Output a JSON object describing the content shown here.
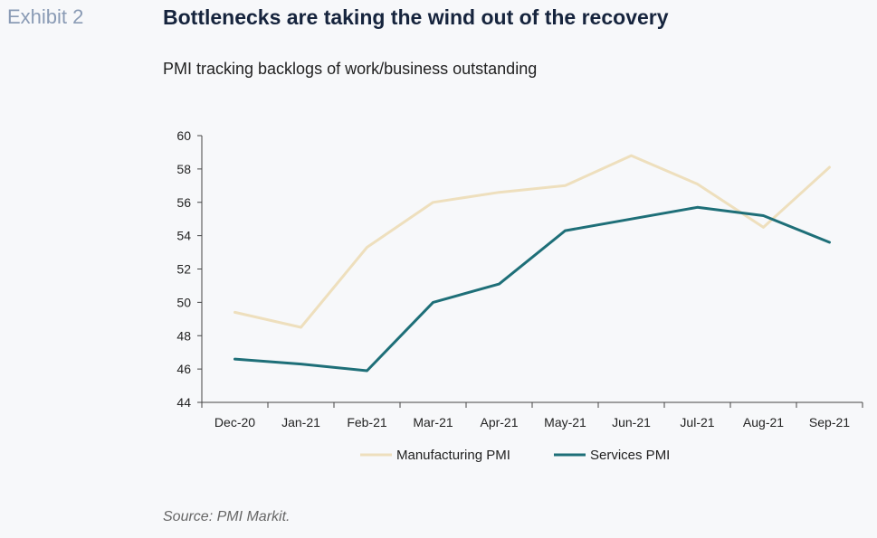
{
  "header": {
    "exhibit": "Exhibit 2",
    "title": "Bottlenecks are taking the wind out of the recovery",
    "subtitle": "PMI tracking backlogs of work/business outstanding"
  },
  "footer": {
    "source": "Source: PMI Markit."
  },
  "chart_data": {
    "type": "line",
    "x": [
      "Dec-20",
      "Jan-21",
      "Feb-21",
      "Mar-21",
      "Apr-21",
      "May-21",
      "Jun-21",
      "Jul-21",
      "Aug-21",
      "Sep-21"
    ],
    "series": [
      {
        "name": "Manufacturing PMI",
        "color": "#eedfbd",
        "values": [
          49.4,
          48.5,
          53.3,
          56.0,
          56.6,
          57.0,
          58.8,
          57.1,
          54.5,
          58.1
        ]
      },
      {
        "name": "Services PMI",
        "color": "#1e6f78",
        "values": [
          46.6,
          46.3,
          45.9,
          50.0,
          51.1,
          54.3,
          55.0,
          55.7,
          55.2,
          53.6
        ]
      }
    ],
    "ylim": [
      44,
      60
    ],
    "yticks": [
      44,
      46,
      48,
      50,
      52,
      54,
      56,
      58,
      60
    ],
    "grid": false,
    "legend": "bottom"
  }
}
